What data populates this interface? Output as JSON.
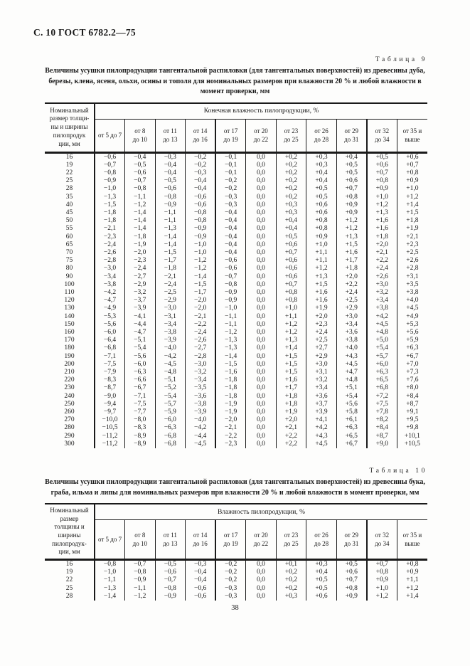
{
  "page": {
    "header_text": "С. 10 ГОСТ 6782.2—75",
    "page_number": "38"
  },
  "table9": {
    "label": "Таблица 9",
    "caption": "Величины усушки пилопродукции тангентальной распиловки (для тангентальных поверхностей) из древесины дуба, березы, клена, ясеня, ольхи, осины и тополя для номинальных размеров при влажности 20 % и любой влажности в момент проверки, мм",
    "row_header": "Номинальный\nразмер толщи-\nны и ширины\nпилопродук\nции, мм",
    "span_header": "Конечная влажность пилопродукции, %",
    "columns": [
      "от 5 до 7",
      "от 8\nдо 10",
      "от 11\nдо 13",
      "от 14\nдо 16",
      "от 17\nдо 19",
      "от 20\nдо 22",
      "от 23\nдо 25",
      "от 26\nдо 28",
      "от 29\nдо 31",
      "от 32\nдо 34",
      "от 35 и\nвыше"
    ],
    "rows": [
      [
        "16",
        "−0,6",
        "−0,4",
        "−0,3",
        "−0,2",
        "−0,1",
        "0,0",
        "+0,2",
        "+0,3",
        "+0,4",
        "+0,5",
        "+0,6"
      ],
      [
        "19",
        "−0,7",
        "−0,5",
        "−0,4",
        "−0,2",
        "−0,1",
        "0,0",
        "+0,2",
        "+0,3",
        "+0,5",
        "+0,6",
        "+0,7"
      ],
      [
        "22",
        "−0,8",
        "−0,6",
        "−0,4",
        "−0,3",
        "−0,1",
        "0,0",
        "+0,2",
        "+0,4",
        "+0,5",
        "+0,7",
        "+0,8"
      ],
      [
        "25",
        "−0,9",
        "−0,7",
        "−0,5",
        "−0,4",
        "−0,2",
        "0,0",
        "+0,2",
        "+0,4",
        "+0,6",
        "+0,8",
        "+0,9"
      ],
      [
        "28",
        "−1,0",
        "−0,8",
        "−0,6",
        "−0,4",
        "−0,2",
        "0,0",
        "+0,2",
        "+0,5",
        "+0,7",
        "+0,9",
        "+1,0"
      ],
      [
        "35",
        "−1,3",
        "−1,1",
        "−0,8",
        "−0,6",
        "−0,3",
        "0,0",
        "+0,2",
        "+0,5",
        "+0,8",
        "+1,0",
        "+1,2"
      ],
      [
        "40",
        "−1,5",
        "−1,2",
        "−0,9",
        "−0,6",
        "−0,3",
        "0,0",
        "+0,3",
        "+0,6",
        "+0,9",
        "+1,2",
        "+1,4"
      ],
      [
        "45",
        "−1,8",
        "−1,4",
        "−1,1",
        "−0,8",
        "−0,4",
        "0,0",
        "+0,3",
        "+0,6",
        "+0,9",
        "+1,3",
        "+1,5"
      ],
      [
        "50",
        "−1,8",
        "−1,4",
        "−1,1",
        "−0,8",
        "−0,4",
        "0,0",
        "+0,4",
        "+0,8",
        "+1,2",
        "+1,6",
        "+1,8"
      ],
      [
        "55",
        "−2,1",
        "−1,4",
        "−1,3",
        "−0,9",
        "−0,4",
        "0,0",
        "+0,4",
        "+0,8",
        "+1,2",
        "+1,6",
        "+1,9"
      ],
      [
        "60",
        "−2,3",
        "−1,8",
        "−1,4",
        "−0,9",
        "−0,4",
        "0,0",
        "+0,5",
        "+0,9",
        "+1,3",
        "+1,8",
        "+2,1"
      ],
      [
        "65",
        "−2,4",
        "−1,9",
        "−1,4",
        "−1,0",
        "−0,4",
        "0,0",
        "+0,6",
        "+1,0",
        "+1,5",
        "+2,0",
        "+2,3"
      ],
      [
        "70",
        "−2,6",
        "−2,0",
        "−1,5",
        "−1,0",
        "−0,4",
        "0,0",
        "+0,7",
        "+1,1",
        "+1,6",
        "+2,1",
        "+2,5"
      ],
      [
        "75",
        "−2,8",
        "−2,3",
        "−1,7",
        "−1,2",
        "−0,6",
        "0,0",
        "+0,6",
        "+1,1",
        "+1,7",
        "+2,2",
        "+2,6"
      ],
      [
        "80",
        "−3,0",
        "−2,4",
        "−1,8",
        "−1,2",
        "−0,6",
        "0,0",
        "+0,6",
        "+1,2",
        "+1,8",
        "+2,4",
        "+2,8"
      ],
      [
        "90",
        "−3,4",
        "−2,7",
        "−2,1",
        "−1,4",
        "−0,7",
        "0,0",
        "+0,6",
        "+1,3",
        "+2,0",
        "+2,6",
        "+3,1"
      ],
      [
        "100",
        "−3,8",
        "−2,9",
        "−2,4",
        "−1,5",
        "−0,8",
        "0,0",
        "+0,7",
        "+1,5",
        "+2,2",
        "+3,0",
        "+3,5"
      ],
      [
        "110",
        "−4,2",
        "−3,2",
        "−2,5",
        "−1,7",
        "−0,9",
        "0,0",
        "+0,8",
        "+1,6",
        "+2,4",
        "+3,2",
        "+3,8"
      ],
      [
        "120",
        "−4,7",
        "−3,7",
        "−2,9",
        "−2,0",
        "−0,9",
        "0,0",
        "+0,8",
        "+1,6",
        "+2,5",
        "+3,4",
        "+4,0"
      ],
      [
        "130",
        "−4,9",
        "−3,9",
        "−3,0",
        "−2,0",
        "−1,0",
        "0,0",
        "+1,0",
        "+1,9",
        "+2,9",
        "+3,8",
        "+4,5"
      ],
      [
        "140",
        "−5,3",
        "−4,1",
        "−3,1",
        "−2,1",
        "−1,1",
        "0,0",
        "+1,1",
        "+2,0",
        "+3,0",
        "+4,2",
        "+4,9"
      ],
      [
        "150",
        "−5,6",
        "−4,4",
        "−3,4",
        "−2,2",
        "−1,1",
        "0,0",
        "+1,2",
        "+2,3",
        "+3,4",
        "+4,5",
        "+5,3"
      ],
      [
        "160",
        "−6,0",
        "−4,7",
        "−3,8",
        "−2,4",
        "−1,2",
        "0,0",
        "+1,2",
        "+2,4",
        "+3,6",
        "+4,8",
        "+5,6"
      ],
      [
        "170",
        "−6,4",
        "−5,1",
        "−3,9",
        "−2,6",
        "−1,3",
        "0,0",
        "+1,3",
        "+2,5",
        "+3,8",
        "+5,0",
        "+5,9"
      ],
      [
        "180",
        "−6,8",
        "−5,4",
        "−4,0",
        "−2,7",
        "−1,3",
        "0,0",
        "+1,4",
        "+2,7",
        "+4,0",
        "+5,4",
        "+6,3"
      ],
      [
        "190",
        "−7,1",
        "−5,6",
        "−4,2",
        "−2,8",
        "−1,4",
        "0,0",
        "+1,5",
        "+2,9",
        "+4,3",
        "+5,7",
        "+6,7"
      ],
      [
        "200",
        "−7,5",
        "−6,0",
        "−4,5",
        "−3,0",
        "−1,5",
        "0,0",
        "+1,5",
        "+3,0",
        "+4,5",
        "+6,0",
        "+7,0"
      ],
      [
        "210",
        "−7,9",
        "−6,3",
        "−4,8",
        "−3,2",
        "−1,6",
        "0,0",
        "+1,5",
        "+3,1",
        "+4,7",
        "+6,3",
        "+7,3"
      ],
      [
        "220",
        "−8,3",
        "−6,6",
        "−5,1",
        "−3,4",
        "−1,8",
        "0,0",
        "+1,6",
        "+3,2",
        "+4,8",
        "+6,5",
        "+7,6"
      ],
      [
        "230",
        "−8,7",
        "−6,7",
        "−5,2",
        "−3,5",
        "−1,8",
        "0,0",
        "+1,7",
        "+3,4",
        "+5,1",
        "+6,8",
        "+8,0"
      ],
      [
        "240",
        "−9,0",
        "−7,1",
        "−5,4",
        "−3,6",
        "−1,8",
        "0,0",
        "+1,8",
        "+3,6",
        "+5,4",
        "+7,2",
        "+8,4"
      ],
      [
        "250",
        "−9,4",
        "−7,5",
        "−5,7",
        "−3,8",
        "−1,9",
        "0,0",
        "+1,8",
        "+3,7",
        "+5,6",
        "+7,5",
        "+8,7"
      ],
      [
        "260",
        "−9,7",
        "−7,7",
        "−5,9",
        "−3,9",
        "−1,9",
        "0,0",
        "+1,9",
        "+3,9",
        "+5,8",
        "+7,8",
        "+9,1"
      ],
      [
        "270",
        "−10,0",
        "−8,0",
        "−6,0",
        "−4,0",
        "−2,0",
        "0,0",
        "+2,0",
        "+4,1",
        "+6,1",
        "+8,2",
        "+9,5"
      ],
      [
        "280",
        "−10,5",
        "−8,3",
        "−6,3",
        "−4,2",
        "−2,1",
        "0,0",
        "+2,1",
        "+4,2",
        "+6,3",
        "+8,4",
        "+9,8"
      ],
      [
        "290",
        "−11,2",
        "−8,9",
        "−6,8",
        "−4,4",
        "−2,2",
        "0,0",
        "+2,2",
        "+4,3",
        "+6,5",
        "+8,7",
        "+10,1"
      ],
      [
        "300",
        "−11,2",
        "−8,9",
        "−6,8",
        "−4,5",
        "−2,3",
        "0,0",
        "+2,2",
        "+4,5",
        "+6,7",
        "+9,0",
        "+10,5"
      ]
    ]
  },
  "table10": {
    "label": "Таблица 10",
    "caption": "Величины усушки пилопродукции тангентальной распиловки (для тангентальных поверхностей) из древесины бука, граба, ильма и липы для номинальных размеров при влажности 20 % и любой влажности в момент проверки, мм",
    "row_header": "Номинальный\nразмер\nтолщины и\nширины\nпилопродук-\nции, мм",
    "span_header": "Влажность пилопродукции, %",
    "columns": [
      "от 5 до 7",
      "от 8\nдо 10",
      "от 11\nдо 13",
      "от 14\nдо 16",
      "от 17\nдо 19",
      "от 20\nдо 22",
      "от 23\nдо 25",
      "от 26\nдо 28",
      "от 29\nдо 31",
      "от 32\nдо 34",
      "от 35 и\nвыше"
    ],
    "rows": [
      [
        "16",
        "−0,8",
        "−0,7",
        "−0,5",
        "−0,3",
        "−0,2",
        "0,0",
        "+0,1",
        "+0,3",
        "+0,5",
        "+0,7",
        "+0,8"
      ],
      [
        "19",
        "−1,0",
        "−0,8",
        "−0,6",
        "−0,4",
        "−0,2",
        "0,0",
        "+0,2",
        "+0,4",
        "+0,6",
        "+0,8",
        "+0,9"
      ],
      [
        "22",
        "−1,1",
        "−0,9",
        "−0,7",
        "−0,4",
        "−0,2",
        "0,0",
        "+0,2",
        "+0,5",
        "+0,7",
        "+0,9",
        "+1,1"
      ],
      [
        "25",
        "−1,3",
        "−1,1",
        "−0,8",
        "−0,6",
        "−0,3",
        "0,0",
        "+0,2",
        "+0,5",
        "+0,8",
        "+1,0",
        "+1,2"
      ],
      [
        "28",
        "−1,4",
        "−1,2",
        "−0,9",
        "−0,6",
        "−0,3",
        "0,0",
        "+0,3",
        "+0,6",
        "+0,9",
        "+1,2",
        "+1,4"
      ]
    ]
  }
}
